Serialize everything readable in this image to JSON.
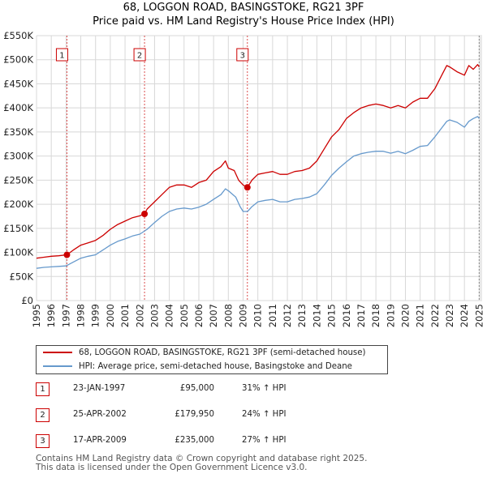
{
  "chart_data": {
    "type": "line",
    "title": "68, LOGGON ROAD, BASINGSTOKE, RG21 3PF",
    "subtitle": "Price paid vs. HM Land Registry's House Price Index (HPI)",
    "xlim": [
      1995,
      2025.2
    ],
    "ylim": [
      0,
      550000
    ],
    "x_ticks": [
      1995,
      1996,
      1997,
      1998,
      1999,
      2000,
      2001,
      2002,
      2003,
      2004,
      2005,
      2006,
      2007,
      2008,
      2009,
      2010,
      2011,
      2012,
      2013,
      2014,
      2015,
      2016,
      2017,
      2018,
      2019,
      2020,
      2021,
      2022,
      2023,
      2024,
      2025
    ],
    "y_ticks": [
      {
        "value": 0,
        "label": "£0"
      },
      {
        "value": 50000,
        "label": "£50K"
      },
      {
        "value": 100000,
        "label": "£100K"
      },
      {
        "value": 150000,
        "label": "£150K"
      },
      {
        "value": 200000,
        "label": "£200K"
      },
      {
        "value": 250000,
        "label": "£250K"
      },
      {
        "value": 300000,
        "label": "£300K"
      },
      {
        "value": 350000,
        "label": "£350K"
      },
      {
        "value": 400000,
        "label": "£400K"
      },
      {
        "value": 450000,
        "label": "£450K"
      },
      {
        "value": 500000,
        "label": "£500K"
      },
      {
        "value": 550000,
        "label": "£550K"
      }
    ],
    "series": [
      {
        "name": "68, LOGGON ROAD, BASINGSTOKE, RG21 3PF (semi-detached house)",
        "color": "#cc0000",
        "x": [
          1995.0,
          1995.5,
          1996.0,
          1996.5,
          1997.06,
          1997.5,
          1998.0,
          1998.5,
          1999.0,
          1999.5,
          2000.0,
          2000.5,
          2001.0,
          2001.5,
          2002.0,
          2002.32,
          2002.5,
          2003.0,
          2003.5,
          2004.0,
          2004.5,
          2005.0,
          2005.5,
          2006.0,
          2006.5,
          2007.0,
          2007.5,
          2007.8,
          2008.0,
          2008.4,
          2008.7,
          2009.0,
          2009.29,
          2009.6,
          2010.0,
          2010.5,
          2011.0,
          2011.5,
          2012.0,
          2012.5,
          2013.0,
          2013.5,
          2014.0,
          2014.5,
          2015.0,
          2015.5,
          2016.0,
          2016.5,
          2017.0,
          2017.5,
          2018.0,
          2018.5,
          2019.0,
          2019.5,
          2020.0,
          2020.5,
          2021.0,
          2021.5,
          2022.0,
          2022.5,
          2022.8,
          2023.0,
          2023.5,
          2024.0,
          2024.3,
          2024.6,
          2024.9,
          2025.0
        ],
        "y": [
          88000,
          90000,
          92000,
          93000,
          95000,
          105000,
          115000,
          120000,
          125000,
          135000,
          148000,
          158000,
          165000,
          172000,
          176000,
          179950,
          190000,
          205000,
          220000,
          235000,
          240000,
          240000,
          235000,
          245000,
          250000,
          268000,
          278000,
          290000,
          275000,
          270000,
          250000,
          240000,
          235000,
          250000,
          262000,
          265000,
          268000,
          262000,
          262000,
          268000,
          270000,
          275000,
          290000,
          315000,
          340000,
          355000,
          378000,
          390000,
          400000,
          405000,
          408000,
          405000,
          400000,
          405000,
          400000,
          412000,
          420000,
          420000,
          440000,
          470000,
          488000,
          485000,
          475000,
          468000,
          488000,
          480000,
          490000,
          485000
        ]
      },
      {
        "name": "HPI: Average price, semi-detached house, Basingstoke and Deane",
        "color": "#6699cc",
        "x": [
          1995.0,
          1995.5,
          1996.0,
          1996.5,
          1997.0,
          1997.5,
          1998.0,
          1998.5,
          1999.0,
          1999.5,
          2000.0,
          2000.5,
          2001.0,
          2001.5,
          2002.0,
          2002.5,
          2003.0,
          2003.5,
          2004.0,
          2004.5,
          2005.0,
          2005.5,
          2006.0,
          2006.5,
          2007.0,
          2007.5,
          2007.8,
          2008.0,
          2008.5,
          2008.8,
          2009.0,
          2009.3,
          2009.6,
          2010.0,
          2010.5,
          2011.0,
          2011.5,
          2012.0,
          2012.5,
          2013.0,
          2013.5,
          2014.0,
          2014.5,
          2015.0,
          2015.5,
          2016.0,
          2016.5,
          2017.0,
          2017.5,
          2018.0,
          2018.5,
          2019.0,
          2019.5,
          2020.0,
          2020.5,
          2021.0,
          2021.5,
          2022.0,
          2022.5,
          2022.8,
          2023.0,
          2023.5,
          2024.0,
          2024.3,
          2024.6,
          2024.9,
          2025.0
        ],
        "y": [
          67000,
          69000,
          70000,
          71000,
          72000,
          80000,
          88000,
          92000,
          95000,
          105000,
          115000,
          123000,
          128000,
          134000,
          138000,
          148000,
          162000,
          175000,
          185000,
          190000,
          192000,
          190000,
          194000,
          200000,
          210000,
          220000,
          232000,
          228000,
          215000,
          195000,
          185000,
          185000,
          195000,
          205000,
          208000,
          210000,
          205000,
          205000,
          210000,
          212000,
          215000,
          222000,
          240000,
          260000,
          275000,
          288000,
          300000,
          305000,
          308000,
          310000,
          310000,
          306000,
          310000,
          305000,
          312000,
          320000,
          322000,
          340000,
          360000,
          372000,
          375000,
          370000,
          360000,
          372000,
          378000,
          382000,
          378000
        ]
      }
    ],
    "sales": [
      {
        "label": "1",
        "x": 1997.06,
        "y": 95000,
        "date": "23-JAN-1997",
        "price": "£95,000",
        "hpi": "31% ↑ HPI"
      },
      {
        "label": "2",
        "x": 2002.32,
        "y": 179950,
        "date": "25-APR-2002",
        "price": "£179,950",
        "hpi": "24% ↑ HPI"
      },
      {
        "label": "3",
        "x": 2009.29,
        "y": 235000,
        "date": "17-APR-2009",
        "price": "£235,000",
        "hpi": "27% ↑ HPI"
      }
    ],
    "future_from": 2025.0
  },
  "footer": {
    "line1": "Contains HM Land Registry data © Crown copyright and database right 2025.",
    "line2": "This data is licensed under the Open Government Licence v3.0."
  }
}
